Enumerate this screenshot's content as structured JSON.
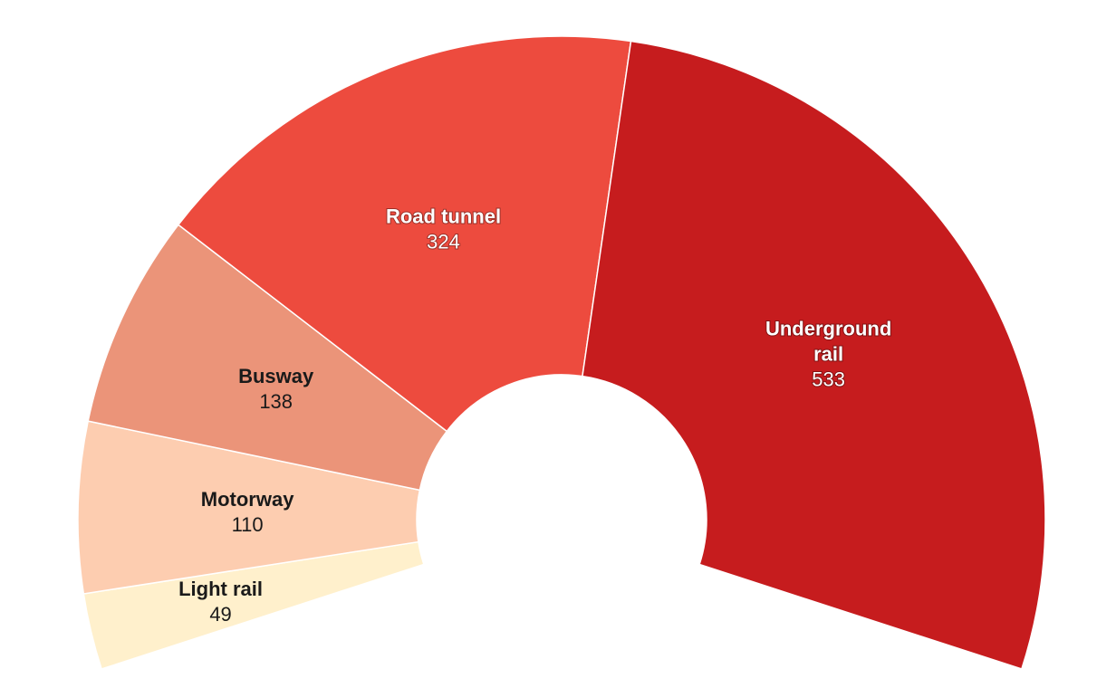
{
  "chart_data": {
    "type": "pie",
    "variant": "semicircle-donut",
    "slices": [
      {
        "label": "Light rail",
        "value": 49,
        "color": "#fff0cc"
      },
      {
        "label": "Motorway",
        "value": 110,
        "color": "#fdcdb0"
      },
      {
        "label": "Busway",
        "value": 138,
        "color": "#eb9479"
      },
      {
        "label": "Road tunnel",
        "value": 324,
        "color": "#ed4b3e"
      },
      {
        "label": "Underground rail",
        "value": 533,
        "color": "#c61c1e"
      }
    ],
    "title": "",
    "legend": "none",
    "data_labels": "inside"
  }
}
